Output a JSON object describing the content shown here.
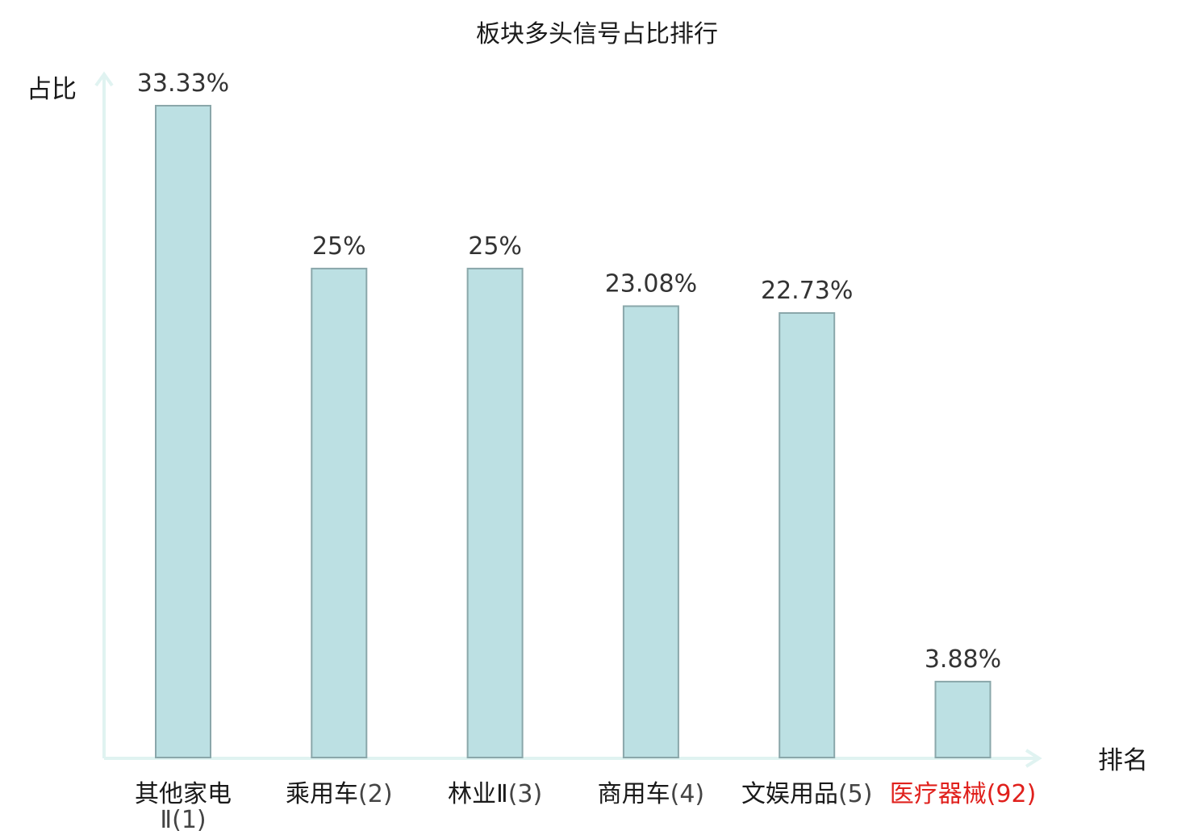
{
  "chart_data": {
    "type": "bar",
    "title": "板块多头信号占比排行",
    "ylabel": "占比",
    "xlabel": "排名",
    "ylim": [
      0,
      33.33
    ],
    "grid": false,
    "categories": [
      {
        "name": "其他家电Ⅱ",
        "rank": "(1)",
        "highlight": false
      },
      {
        "name": "乘用车",
        "rank": "(2)",
        "highlight": false
      },
      {
        "name": "林业Ⅱ",
        "rank": "(3)",
        "highlight": false
      },
      {
        "name": "商用车",
        "rank": "(4)",
        "highlight": false
      },
      {
        "name": "文娱用品",
        "rank": "(5)",
        "highlight": false
      },
      {
        "name": "医疗器械",
        "rank": "(92)",
        "highlight": true
      }
    ],
    "values": [
      33.33,
      25,
      25,
      23.08,
      22.73,
      3.88
    ],
    "value_labels": [
      "33.33%",
      "25%",
      "25%",
      "23.08%",
      "22.73%",
      "3.88%"
    ],
    "colors": {
      "bar_fill": "#bce0e3",
      "bar_stroke": "#8aa7aa",
      "axis": "#e0f3f1",
      "text": "#1a1a1a",
      "rank_text": "#444444",
      "highlight": "#e0201c"
    }
  }
}
